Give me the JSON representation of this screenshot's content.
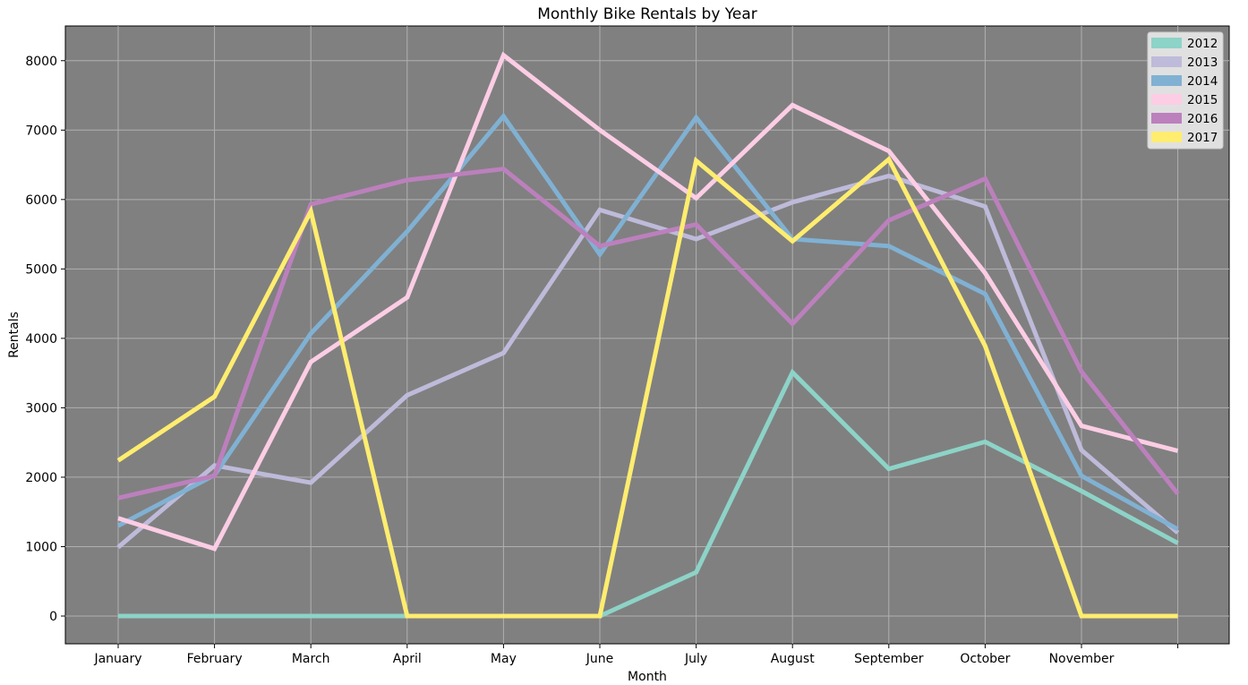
{
  "chart_data": {
    "type": "line",
    "title": "Monthly Bike Rentals by Year",
    "xlabel": "Month",
    "ylabel": "Rentals",
    "categories": [
      "January",
      "February",
      "March",
      "April",
      "May",
      "June",
      "July",
      "August",
      "September",
      "October",
      "November",
      ""
    ],
    "ylim": [
      -400,
      8500
    ],
    "yticks": [
      0,
      1000,
      2000,
      3000,
      4000,
      5000,
      6000,
      7000,
      8000
    ],
    "grid": true,
    "legend_position": "top-right",
    "background_color": "#808080",
    "series": [
      {
        "name": "2012",
        "color": "#8dd3c7",
        "values": [
          0,
          0,
          0,
          0,
          0,
          0,
          630,
          3510,
          2120,
          2510,
          1800,
          1050
        ]
      },
      {
        "name": "2013",
        "color": "#bebada",
        "values": [
          990,
          2170,
          1920,
          3180,
          3790,
          5850,
          5430,
          5960,
          6340,
          5900,
          2390,
          1200
        ]
      },
      {
        "name": "2014",
        "color": "#80b1d3",
        "values": [
          1300,
          2030,
          4070,
          5540,
          7200,
          5210,
          7180,
          5430,
          5330,
          4640,
          2020,
          1250
        ]
      },
      {
        "name": "2015",
        "color": "#fccde5",
        "values": [
          1410,
          970,
          3660,
          4590,
          8080,
          7000,
          6020,
          7360,
          6700,
          4940,
          2740,
          2380
        ]
      },
      {
        "name": "2016",
        "color": "#bc80bd",
        "values": [
          1700,
          2020,
          5930,
          6280,
          6440,
          5330,
          5640,
          4210,
          5700,
          6300,
          3520,
          1760
        ]
      },
      {
        "name": "2017",
        "color": "#ffed6f",
        "values": [
          2240,
          3160,
          5830,
          0,
          0,
          0,
          6560,
          5400,
          6580,
          3890,
          0,
          0
        ]
      }
    ]
  }
}
